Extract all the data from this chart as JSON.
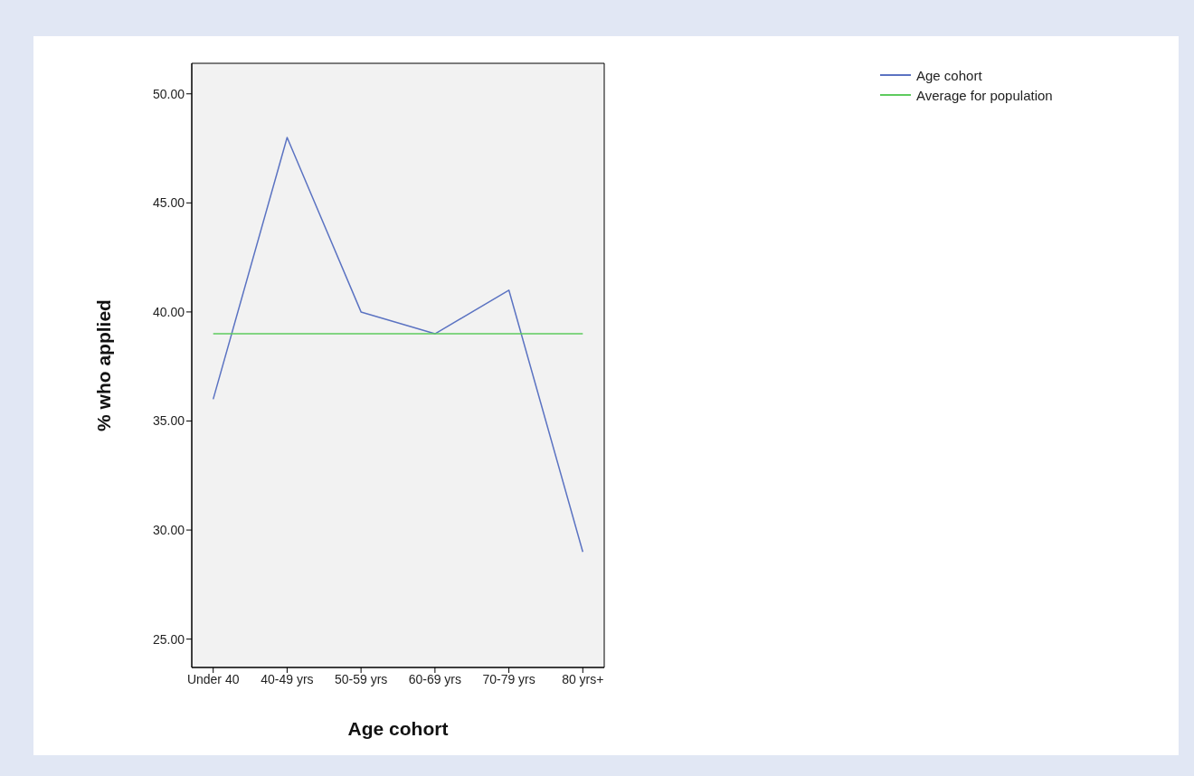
{
  "chart_data": {
    "type": "line",
    "xlabel": "Age cohort",
    "ylabel": "% who applied",
    "categories": [
      "Under 40",
      "40-49 yrs",
      "50-59 yrs",
      "60-69 yrs",
      "70-79 yrs",
      "80 yrs+"
    ],
    "series": [
      {
        "name": "Age cohort",
        "color": "#5b73c2",
        "values": [
          36,
          48,
          40,
          39,
          41,
          29
        ]
      },
      {
        "name": "Average for population",
        "color": "#5ecb5e",
        "values": [
          39,
          39,
          39,
          39,
          39,
          39
        ]
      }
    ],
    "ylim": [
      23.7,
      51.4
    ],
    "yticks": [
      {
        "value": 25,
        "label": "25.00"
      },
      {
        "value": 30,
        "label": "30.00"
      },
      {
        "value": 35,
        "label": "35.00"
      },
      {
        "value": 40,
        "label": "40.00"
      },
      {
        "value": 45,
        "label": "45.00"
      },
      {
        "value": 50,
        "label": "50.00"
      }
    ],
    "grid": false,
    "legend": "top right",
    "marker": "none",
    "line_style": "solid"
  }
}
